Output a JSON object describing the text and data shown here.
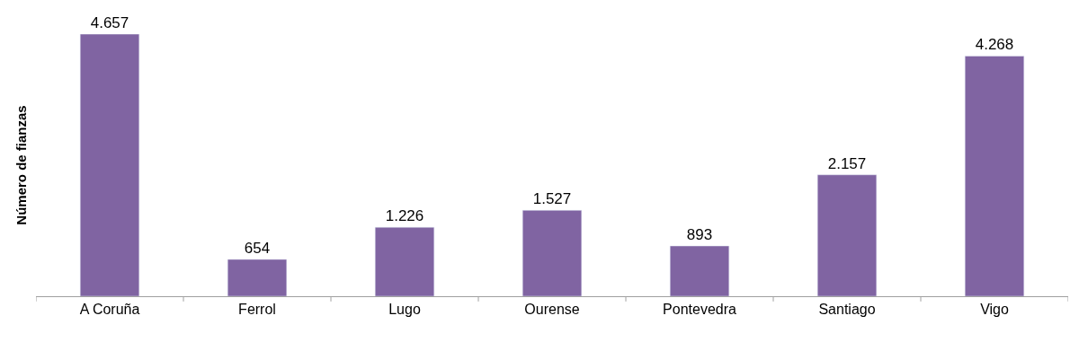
{
  "chart_data": {
    "type": "bar",
    "ylabel": "Número de fianzas",
    "categories": [
      "A Coruña",
      "Ferrol",
      "Lugo",
      "Ourense",
      "Pontevedra",
      "Santiago",
      "Vigo"
    ],
    "values": [
      4657,
      654,
      1226,
      1527,
      893,
      2157,
      4268
    ],
    "value_labels": [
      "4.657",
      "654",
      "1.226",
      "1.527",
      "893",
      "2.157",
      "4.268"
    ],
    "color": "#8064a2"
  }
}
